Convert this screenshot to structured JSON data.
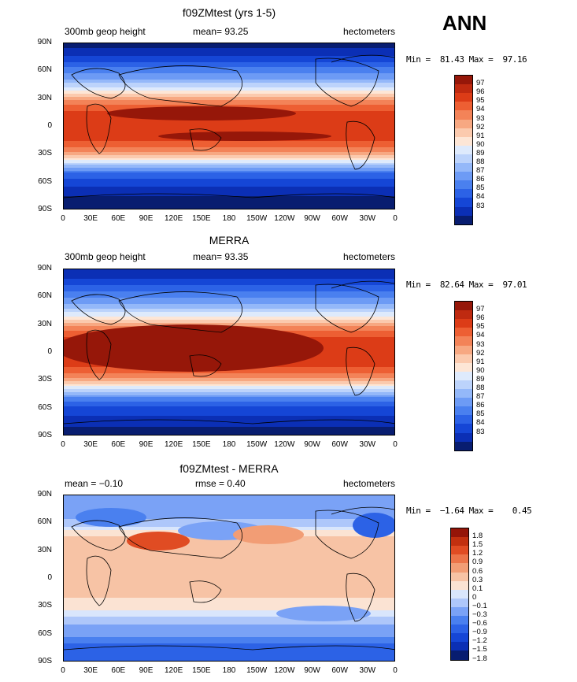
{
  "season": "ANN",
  "colors": {
    "abs": [
      "#081d70",
      "#0b2fb5",
      "#1546d6",
      "#2c62e6",
      "#4a80ef",
      "#6d9bf5",
      "#94b8f9",
      "#bcd3fb",
      "#deeafc",
      "#fde6d6",
      "#fbcaae",
      "#f7a882",
      "#f38358",
      "#ed5f33",
      "#dc3c17",
      "#bf2a10",
      "#961709"
    ],
    "diff": [
      "#081d70",
      "#0b2fb5",
      "#1546d6",
      "#2c62e6",
      "#4a80ef",
      "#7aa2f6",
      "#aec7fa",
      "#d9e6fc",
      "#fbe3d3",
      "#f7c3a5",
      "#f29d75",
      "#ec7449",
      "#e04c23",
      "#c2300f",
      "#951508"
    ]
  },
  "chart_data": [
    {
      "type": "heatmap",
      "title": "f09ZMtest (yrs 1-5)",
      "left_label": "300mb geop height",
      "center_label": "mean=  93.25",
      "right_label": "hectometers",
      "min_max": "Min =  81.43 Max =  97.16",
      "xlabels": [
        "0",
        "30E",
        "60E",
        "90E",
        "120E",
        "150E",
        "180",
        "150W",
        "120W",
        "90W",
        "60W",
        "30W",
        "0"
      ],
      "ylabels": [
        "90N",
        "60N",
        "30N",
        "0",
        "30S",
        "60S",
        "90S"
      ],
      "colorbar_levels": [
        "97",
        "96",
        "95",
        "94",
        "93",
        "92",
        "91",
        "90",
        "89",
        "88",
        "87",
        "86",
        "85",
        "84",
        "83"
      ],
      "zonal_profile": {
        "lat": [
          90,
          80,
          70,
          60,
          50,
          40,
          30,
          20,
          10,
          0,
          -10,
          -20,
          -30,
          -40,
          -50,
          -60,
          -70,
          -80,
          -90
        ],
        "value": [
          82.5,
          83.5,
          85.0,
          86.6,
          88.3,
          90.6,
          93.6,
          95.7,
          96.6,
          96.6,
          96.4,
          95.5,
          93.2,
          89.5,
          86.0,
          84.4,
          83.5,
          82.6,
          82.0
        ]
      }
    },
    {
      "type": "heatmap",
      "title": "MERRA",
      "left_label": "300mb geop height",
      "center_label": "mean=  93.35",
      "right_label": "hectometers",
      "min_max": "Min =  82.64 Max =  97.01",
      "xlabels": [
        "0",
        "30E",
        "60E",
        "90E",
        "120E",
        "150E",
        "180",
        "150W",
        "120W",
        "90W",
        "60W",
        "30W",
        "0"
      ],
      "ylabels": [
        "90N",
        "60N",
        "30N",
        "0",
        "30S",
        "60S",
        "90S"
      ],
      "colorbar_levels": [
        "97",
        "96",
        "95",
        "94",
        "93",
        "92",
        "91",
        "90",
        "89",
        "88",
        "87",
        "86",
        "85",
        "84",
        "83"
      ],
      "zonal_profile": {
        "lat": [
          90,
          80,
          70,
          60,
          50,
          40,
          30,
          20,
          10,
          0,
          -10,
          -20,
          -30,
          -40,
          -50,
          -60,
          -70,
          -80,
          -90
        ],
        "value": [
          83.0,
          84.0,
          85.4,
          86.9,
          88.5,
          90.8,
          93.7,
          95.7,
          96.5,
          96.5,
          96.4,
          95.5,
          93.3,
          89.7,
          86.3,
          84.7,
          83.8,
          83.0,
          82.7
        ]
      }
    },
    {
      "type": "heatmap",
      "title": "f09ZMtest - MERRA",
      "left_label": "mean =  −0.10",
      "center_label": "rmse =    0.40",
      "right_label": "hectometers",
      "min_max": "Min =  −1.64 Max =    0.45",
      "xlabels": [
        "0",
        "30E",
        "60E",
        "90E",
        "120E",
        "150E",
        "180",
        "150W",
        "120W",
        "90W",
        "60W",
        "30W",
        "0"
      ],
      "ylabels": [
        "90N",
        "60N",
        "30N",
        "0",
        "30S",
        "60S",
        "90S"
      ],
      "colorbar_levels": [
        "1.8",
        "1.5",
        "1.2",
        "0.9",
        "0.6",
        "0.3",
        "0.1",
        "0",
        "−0.1",
        "−0.3",
        "−0.6",
        "−0.9",
        "−1.2",
        "−1.5",
        "−1.8"
      ],
      "zonal_profile": {
        "lat": [
          90,
          80,
          70,
          60,
          50,
          40,
          30,
          20,
          10,
          0,
          -10,
          -20,
          -30,
          -40,
          -50,
          -60,
          -70,
          -80,
          -90
        ],
        "value": [
          -0.6,
          -0.5,
          -0.4,
          -0.2,
          0.05,
          0.15,
          0.15,
          0.12,
          0.1,
          0.1,
          0.1,
          0.1,
          0.05,
          -0.1,
          -0.3,
          -0.5,
          -0.9,
          -1.1,
          -1.0
        ]
      }
    }
  ]
}
